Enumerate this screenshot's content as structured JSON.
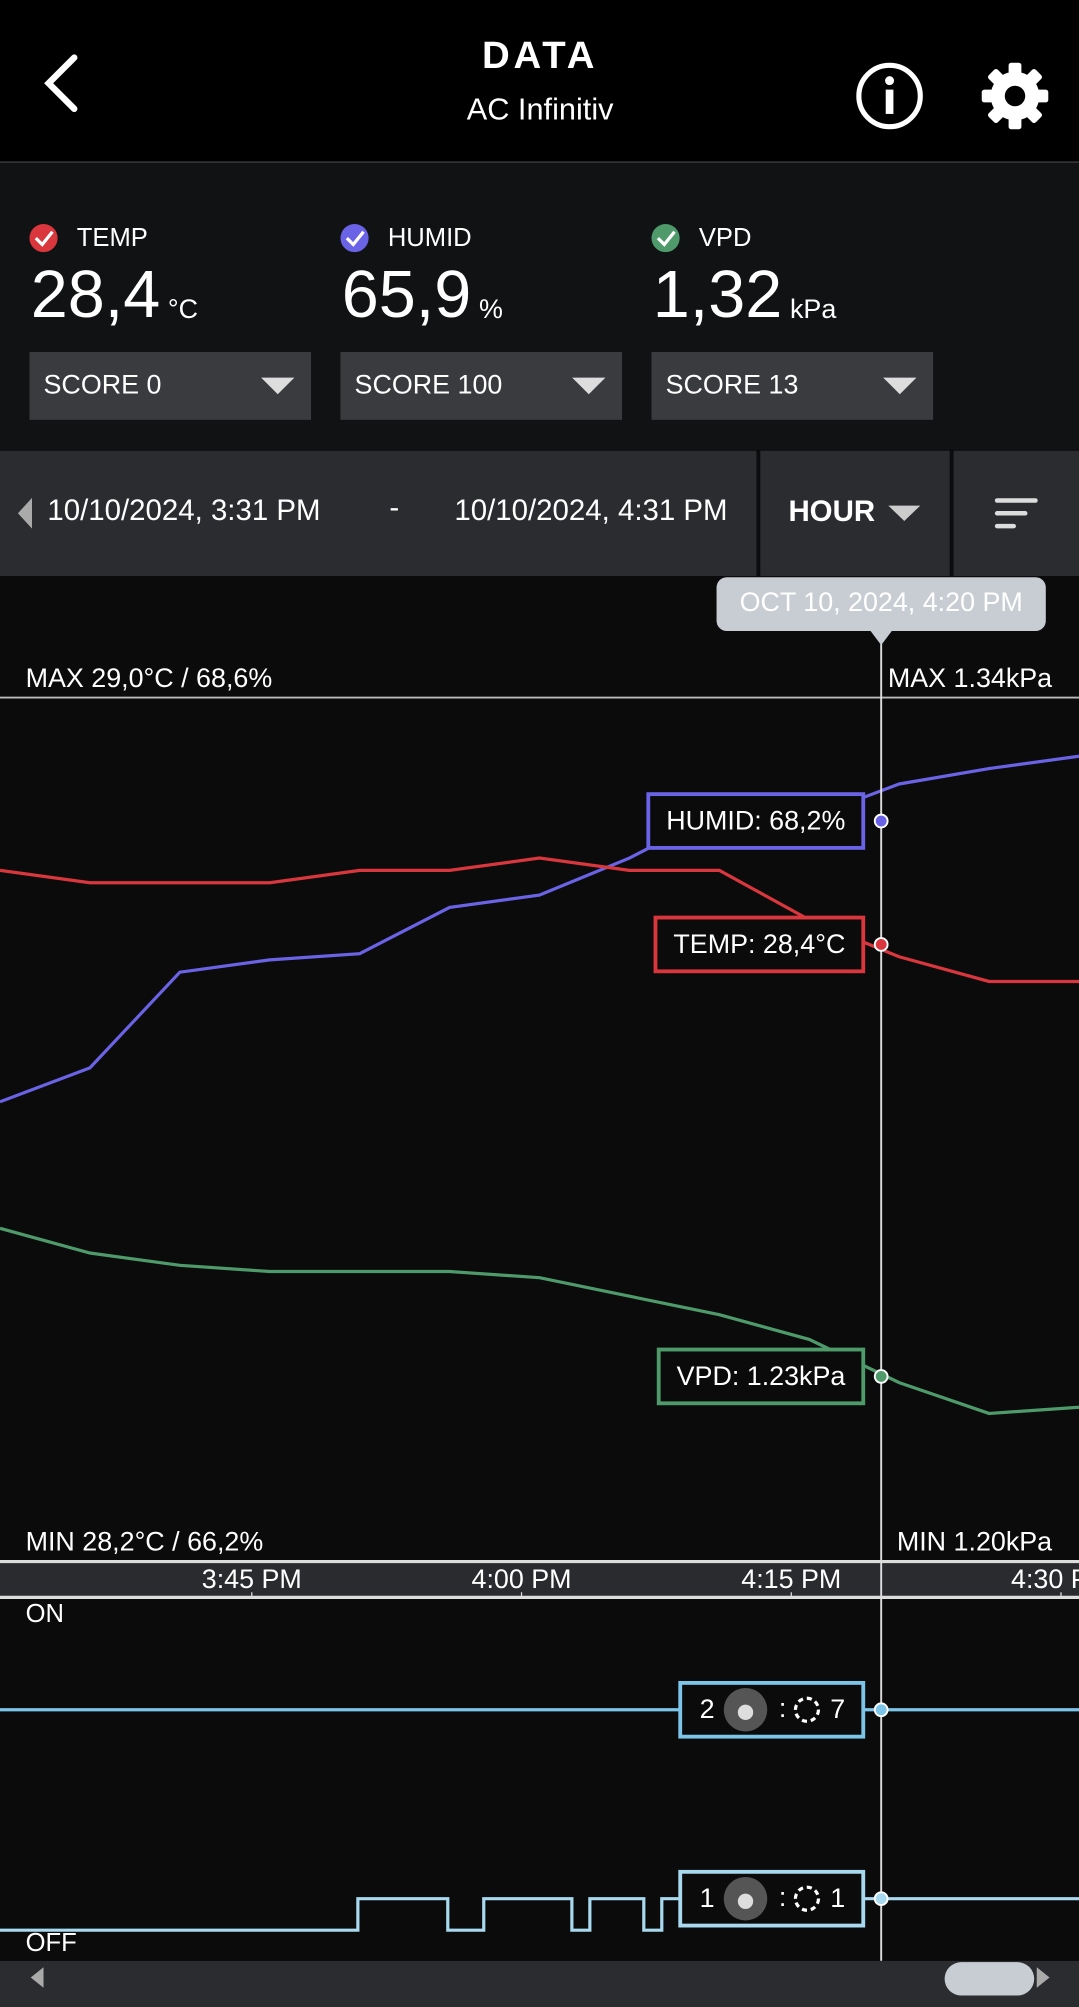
{
  "header": {
    "title": "DATA",
    "subtitle": "AC Infinitiv"
  },
  "sensors": [
    {
      "label": "TEMP",
      "value": "28,4",
      "unit": "°C",
      "score": "SCORE 0",
      "color": "#d9363e"
    },
    {
      "label": "HUMID",
      "value": "65,9",
      "unit": "%",
      "score": "SCORE 100",
      "color": "#6b63e6"
    },
    {
      "label": "VPD",
      "value": "1,32",
      "unit": "kPa",
      "score": "SCORE 13",
      "color": "#4f9a6b"
    }
  ],
  "range": {
    "start": "10/10/2024, 3:31 PM",
    "separator": "-",
    "end": "10/10/2024, 4:31 PM",
    "interval": "HOUR"
  },
  "chart_data": [
    {
      "type": "line",
      "xlim": [
        0,
        60
      ],
      "xticks": [
        {
          "value": 14,
          "label": "3:45 PM"
        },
        {
          "value": 29,
          "label": "4:00 PM"
        },
        {
          "value": 44,
          "label": "4:15 PM"
        },
        {
          "value": 59,
          "label": "4:30 PM"
        }
      ],
      "max_label_left": "MAX 29,0°C / 68,6%",
      "max_label_right": "MAX 1.34kPa",
      "min_label_left": "MIN 28,2°C / 66,2%",
      "min_label_right": "MIN 1.20kPa",
      "cursor": {
        "x": 49,
        "label": "OCT 10, 2024, 4:20 PM"
      },
      "x": [
        0,
        5,
        10,
        15,
        20,
        25,
        30,
        35,
        40,
        45,
        50,
        55,
        60
      ],
      "series": [
        {
          "name": "HUMID",
          "color": "#6b63e6",
          "ylim": [
            65.8,
            68.6
          ],
          "values": [
            67.29,
            67.4,
            67.71,
            67.75,
            67.77,
            67.92,
            67.96,
            68.08,
            68.23,
            68.21,
            68.32,
            68.37,
            68.41
          ],
          "cursor_value": 68.2,
          "cursor_label": "HUMID: 68,2%"
        },
        {
          "name": "TEMP",
          "color": "#d9363e",
          "ylim": [
            27.9,
            28.6
          ],
          "values": [
            28.46,
            28.45,
            28.45,
            28.45,
            28.46,
            28.46,
            28.47,
            28.46,
            28.46,
            28.42,
            28.39,
            28.37,
            28.37
          ],
          "cursor_value": 28.4,
          "cursor_label": "TEMP: 28,4°C"
        },
        {
          "name": "VPD",
          "color": "#4f9a6b",
          "ylim": [
            1.2,
            1.34
          ],
          "values": [
            1.254,
            1.25,
            1.248,
            1.247,
            1.247,
            1.247,
            1.246,
            1.243,
            1.24,
            1.236,
            1.229,
            1.224,
            1.225
          ],
          "cursor_value": 1.23,
          "cursor_label": "VPD: 1.23kPa"
        }
      ]
    },
    {
      "type": "step",
      "xlim": [
        0,
        60
      ],
      "ylim": [
        0,
        10
      ],
      "top_label": "ON",
      "bottom_label": "OFF",
      "series": [
        {
          "color": "#7cc4e8",
          "x": [
            0,
            60
          ],
          "values": [
            7,
            7
          ],
          "mode": "2",
          "cursor_value": 7
        },
        {
          "color": "#a9d9ef",
          "x": [
            0,
            19.9,
            19.9,
            24.9,
            24.9,
            26.9,
            26.9,
            31.8,
            31.8,
            32.8,
            32.8,
            35.8,
            35.8,
            36.8,
            36.8,
            60
          ],
          "values": [
            0,
            0,
            1,
            1,
            0,
            0,
            1,
            1,
            0,
            0,
            1,
            1,
            0,
            0,
            1,
            1
          ],
          "mode": "1",
          "cursor_value": 1
        }
      ]
    }
  ]
}
